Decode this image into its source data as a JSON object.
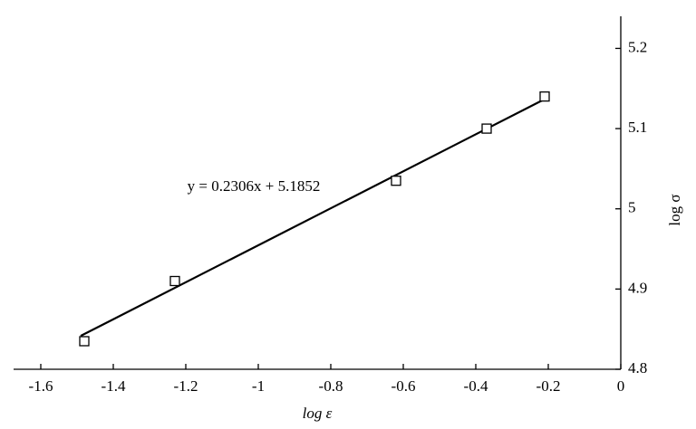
{
  "chart_data": {
    "type": "scatter",
    "xlabel": "log ε",
    "ylabel": "log σ",
    "annotation": "y = 0.2306x + 5.1852",
    "x": [
      -1.48,
      -1.23,
      -0.62,
      -0.37,
      -0.21
    ],
    "values": [
      4.835,
      4.91,
      5.035,
      5.1,
      5.14
    ],
    "fit": {
      "x": [
        -1.49,
        -0.2
      ],
      "values": [
        4.8416,
        5.139
      ]
    },
    "xlim": [
      -1.675,
      0
    ],
    "ylim": [
      4.8,
      5.24
    ],
    "xticks": [
      -1.6,
      -1.4,
      -1.2,
      -1,
      -0.8,
      -0.6,
      -0.4,
      -0.2,
      0
    ],
    "yticks": [
      4.8,
      4.9,
      5,
      5.1,
      5.2
    ],
    "color": "#000000"
  }
}
